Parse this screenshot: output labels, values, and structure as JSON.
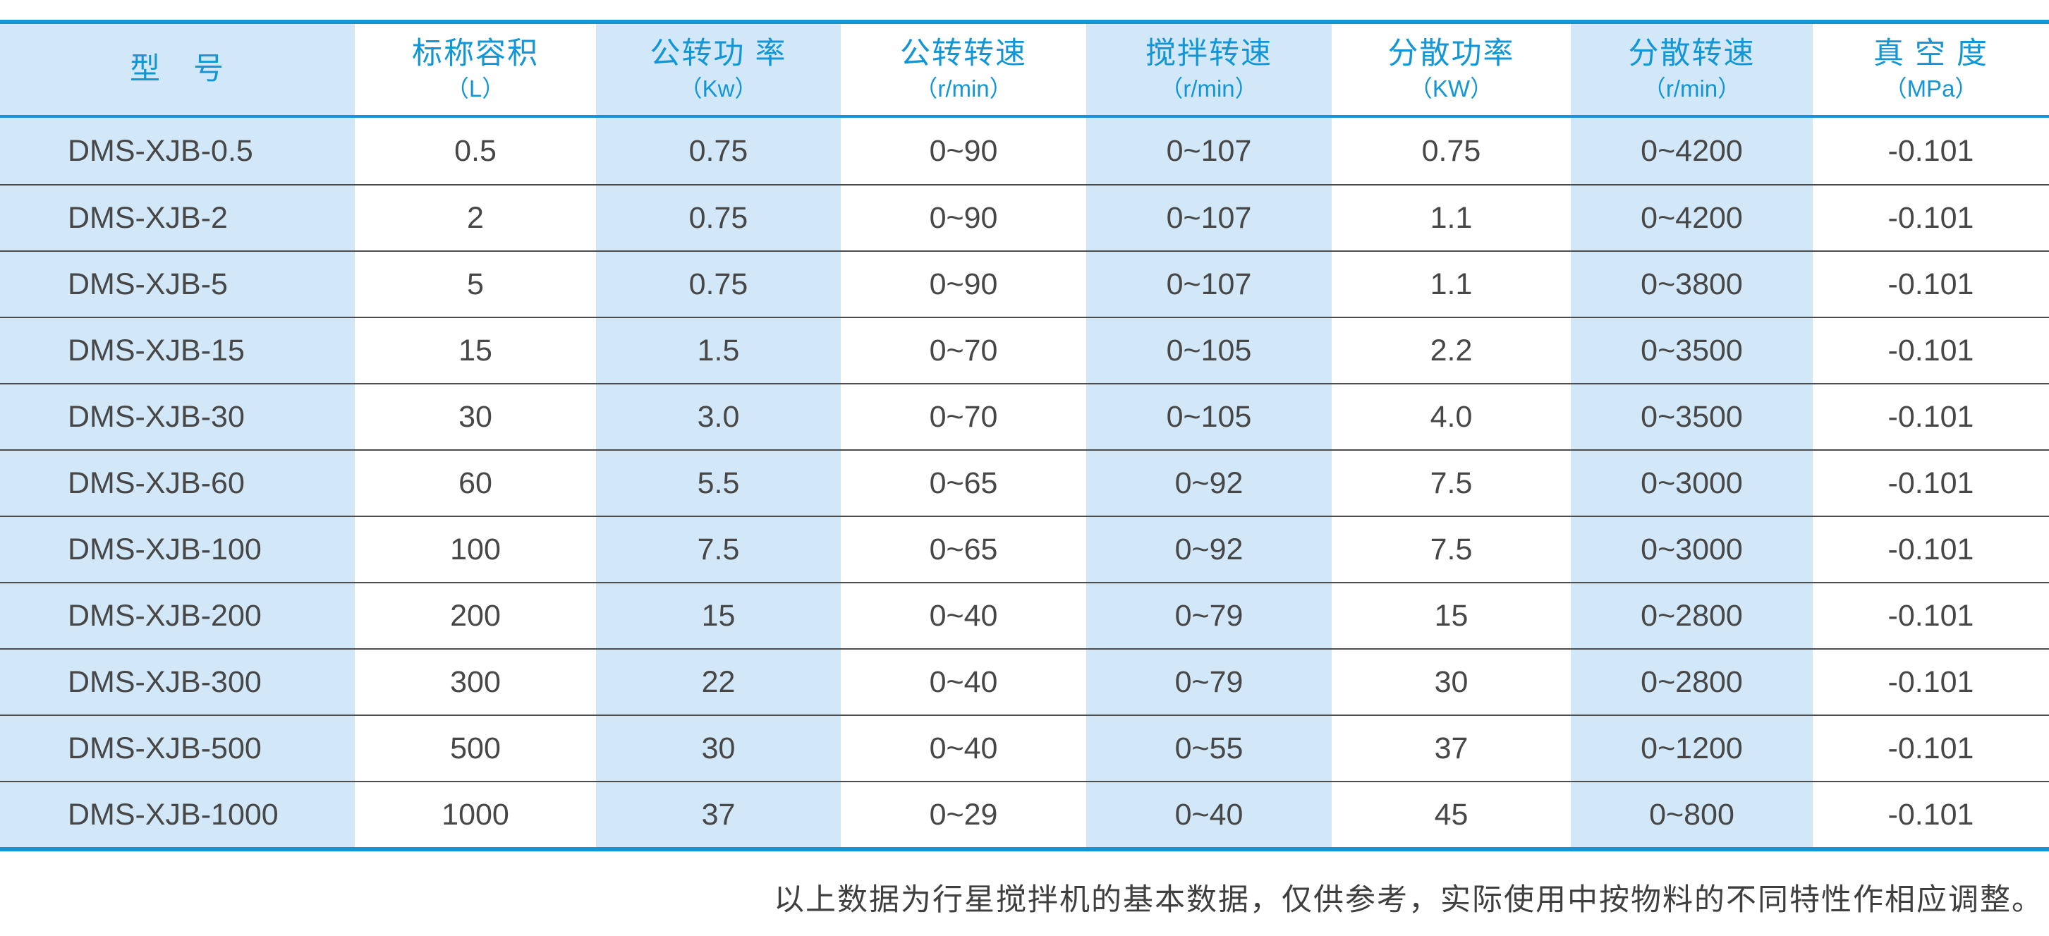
{
  "table": {
    "columns": [
      {
        "title": "型　号",
        "unit": ""
      },
      {
        "title": "标称容积",
        "unit": "（L）"
      },
      {
        "title": "公转功 率",
        "unit": "（Kw）"
      },
      {
        "title": "公转转速",
        "unit": "（r/min）"
      },
      {
        "title": "搅拌转速",
        "unit": "（r/min）"
      },
      {
        "title": "分散功率",
        "unit": "（KW）"
      },
      {
        "title": "分散转速",
        "unit": "（r/min）"
      },
      {
        "title": "真 空 度",
        "unit": "（MPa）"
      }
    ],
    "rows": [
      [
        "DMS-XJB-0.5",
        "0.5",
        "0.75",
        "0~90",
        "0~107",
        "0.75",
        "0~4200",
        "-0.101"
      ],
      [
        "DMS-XJB-2",
        "2",
        "0.75",
        "0~90",
        "0~107",
        "1.1",
        "0~4200",
        "-0.101"
      ],
      [
        "DMS-XJB-5",
        "5",
        "0.75",
        "0~90",
        "0~107",
        "1.1",
        "0~3800",
        "-0.101"
      ],
      [
        "DMS-XJB-15",
        "15",
        "1.5",
        "0~70",
        "0~105",
        "2.2",
        "0~3500",
        "-0.101"
      ],
      [
        "DMS-XJB-30",
        "30",
        "3.0",
        "0~70",
        "0~105",
        "4.0",
        "0~3500",
        "-0.101"
      ],
      [
        "DMS-XJB-60",
        "60",
        "5.5",
        "0~65",
        "0~92",
        "7.5",
        "0~3000",
        "-0.101"
      ],
      [
        "DMS-XJB-100",
        "100",
        "7.5",
        "0~65",
        "0~92",
        "7.5",
        "0~3000",
        "-0.101"
      ],
      [
        "DMS-XJB-200",
        "200",
        "15",
        "0~40",
        "0~79",
        "15",
        "0~2800",
        "-0.101"
      ],
      [
        "DMS-XJB-300",
        "300",
        "22",
        "0~40",
        "0~79",
        "30",
        "0~2800",
        "-0.101"
      ],
      [
        "DMS-XJB-500",
        "500",
        "30",
        "0~40",
        "0~55",
        "37",
        "0~1200",
        "-0.101"
      ],
      [
        "DMS-XJB-1000",
        "1000",
        "37",
        "0~29",
        "0~40",
        "45",
        "0~800",
        "-0.101"
      ]
    ]
  },
  "footer": {
    "note": "以上数据为行星搅拌机的基本数据，仅供参考，实际使用中按物料的不同特性作相应调整。"
  },
  "colors": {
    "accent": "#1296d6",
    "stripe": "#d2e8f8",
    "body_text": "#474747",
    "row_line": "#4d4d4d",
    "footer_text": "#3f3f3f"
  }
}
